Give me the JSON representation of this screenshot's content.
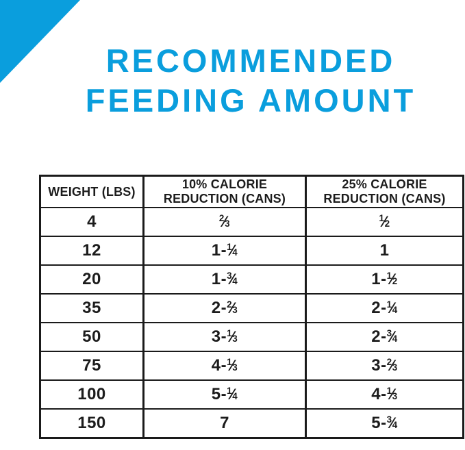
{
  "colors": {
    "accent_blue": "#0a9edd",
    "table_border": "#1a1a1a",
    "text_color": "#1c1c1c",
    "background": "#ffffff"
  },
  "decor": {
    "corner_triangle": "solid blue right-triangle, top-left corner"
  },
  "title": {
    "line1": "RECOMMENDED",
    "line2": "FEEDING AMOUNT"
  },
  "table": {
    "columns": [
      "WEIGHT (LBS)",
      "10% CALORIE\nREDUCTION (CANS)",
      "25% CALORIE\nREDUCTION (CANS)"
    ],
    "rows": [
      [
        "4",
        "2/3",
        "1/2"
      ],
      [
        "12",
        "1-1/4",
        "1"
      ],
      [
        "20",
        "1-3/4",
        "1-1/2"
      ],
      [
        "35",
        "2-2/3",
        "2-1/4"
      ],
      [
        "50",
        "3-1/3",
        "2-3/4"
      ],
      [
        "75",
        "4-1/3",
        "3-2/3"
      ],
      [
        "100",
        "5-1/4",
        "4-1/3"
      ],
      [
        "150",
        "7",
        "5-3/4"
      ]
    ]
  }
}
